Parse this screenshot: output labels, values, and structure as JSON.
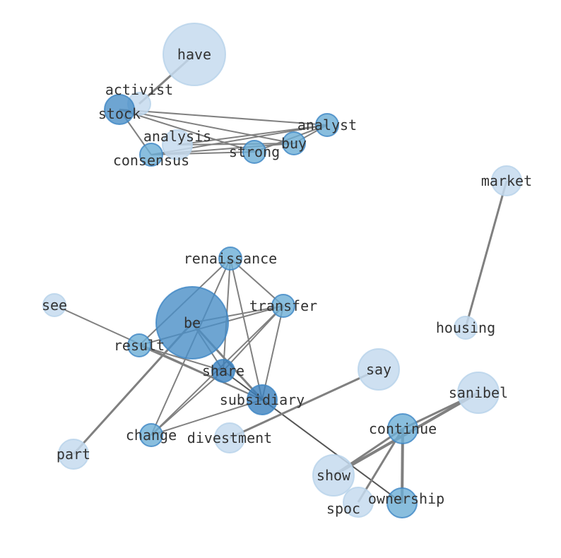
{
  "graph": {
    "edge_color": "#808080",
    "node_colors": {
      "light": "#c6dbef",
      "medium": "#6baed6",
      "dark": "#4a8fc7",
      "darker": "#3a7fbd"
    },
    "nodes": [
      {
        "id": "have",
        "label": "have",
        "shade": "light",
        "size": "xl"
      },
      {
        "id": "activist",
        "label": "activist",
        "shade": "light",
        "size": "s"
      },
      {
        "id": "stock",
        "label": "stock",
        "shade": "dark",
        "size": "m"
      },
      {
        "id": "analyst",
        "label": "analyst",
        "shade": "medium",
        "size": "s"
      },
      {
        "id": "buy",
        "label": "buy",
        "shade": "medium",
        "size": "s"
      },
      {
        "id": "analysis",
        "label": "analysis",
        "shade": "light",
        "size": "m"
      },
      {
        "id": "consensus",
        "label": "consensus",
        "shade": "medium",
        "size": "s"
      },
      {
        "id": "strong",
        "label": "strong",
        "shade": "medium",
        "size": "s"
      },
      {
        "id": "market",
        "label": "market",
        "shade": "light",
        "size": "m"
      },
      {
        "id": "housing",
        "label": "housing",
        "shade": "light",
        "size": "s"
      },
      {
        "id": "renaissance",
        "label": "renaissance",
        "shade": "medium",
        "size": "s"
      },
      {
        "id": "see",
        "label": "see",
        "shade": "light",
        "size": "s"
      },
      {
        "id": "transfer",
        "label": "transfer",
        "shade": "medium",
        "size": "s"
      },
      {
        "id": "be",
        "label": "be",
        "shade": "dark",
        "size": "xxl"
      },
      {
        "id": "result",
        "label": "result",
        "shade": "medium",
        "size": "s"
      },
      {
        "id": "share",
        "label": "share",
        "shade": "darker",
        "size": "s"
      },
      {
        "id": "say",
        "label": "say",
        "shade": "light",
        "size": "l"
      },
      {
        "id": "subsidiary",
        "label": "subsidiary",
        "shade": "darker",
        "size": "m"
      },
      {
        "id": "sanibel",
        "label": "sanibel",
        "shade": "light",
        "size": "l"
      },
      {
        "id": "continue",
        "label": "continue",
        "shade": "medium",
        "size": "m"
      },
      {
        "id": "change",
        "label": "change",
        "shade": "medium",
        "size": "s"
      },
      {
        "id": "divestment",
        "label": "divestment",
        "shade": "light",
        "size": "m"
      },
      {
        "id": "part",
        "label": "part",
        "shade": "light",
        "size": "m"
      },
      {
        "id": "show",
        "label": "show",
        "shade": "light",
        "size": "l"
      },
      {
        "id": "spoc",
        "label": "spoc",
        "shade": "light",
        "size": "m"
      },
      {
        "id": "ownership",
        "label": "ownership",
        "shade": "medium",
        "size": "m"
      }
    ],
    "edges": [
      [
        "have",
        "activist",
        3
      ],
      [
        "stock",
        "analyst",
        2
      ],
      [
        "stock",
        "buy",
        2
      ],
      [
        "stock",
        "strong",
        2
      ],
      [
        "stock",
        "consensus",
        2
      ],
      [
        "analysis",
        "analyst",
        2
      ],
      [
        "consensus",
        "buy",
        2
      ],
      [
        "consensus",
        "analyst",
        2
      ],
      [
        "strong",
        "analyst",
        2
      ],
      [
        "buy",
        "analyst",
        2
      ],
      [
        "consensus",
        "strong",
        2
      ],
      [
        "analysis",
        "buy",
        2
      ],
      [
        "market",
        "housing",
        3
      ],
      [
        "renaissance",
        "result",
        2
      ],
      [
        "renaissance",
        "share",
        2
      ],
      [
        "renaissance",
        "subsidiary",
        2
      ],
      [
        "renaissance",
        "transfer",
        2
      ],
      [
        "renaissance",
        "change",
        2
      ],
      [
        "transfer",
        "result",
        2
      ],
      [
        "transfer",
        "be",
        2
      ],
      [
        "transfer",
        "share",
        2
      ],
      [
        "transfer",
        "change",
        2
      ],
      [
        "transfer",
        "subsidiary",
        2
      ],
      [
        "be",
        "part",
        3
      ],
      [
        "be",
        "share",
        2
      ],
      [
        "be",
        "subsidiary",
        3
      ],
      [
        "result",
        "share",
        2
      ],
      [
        "result",
        "subsidiary",
        2
      ],
      [
        "see",
        "subsidiary",
        2
      ],
      [
        "share",
        "change",
        2
      ],
      [
        "subsidiary",
        "change",
        2
      ],
      [
        "share",
        "ownership",
        2
      ],
      [
        "say",
        "divestment",
        3
      ],
      [
        "show",
        "sanibel",
        4
      ],
      [
        "continue",
        "sanibel",
        3
      ],
      [
        "continue",
        "show",
        3
      ],
      [
        "continue",
        "spoc",
        3
      ],
      [
        "continue",
        "ownership",
        4
      ]
    ]
  }
}
